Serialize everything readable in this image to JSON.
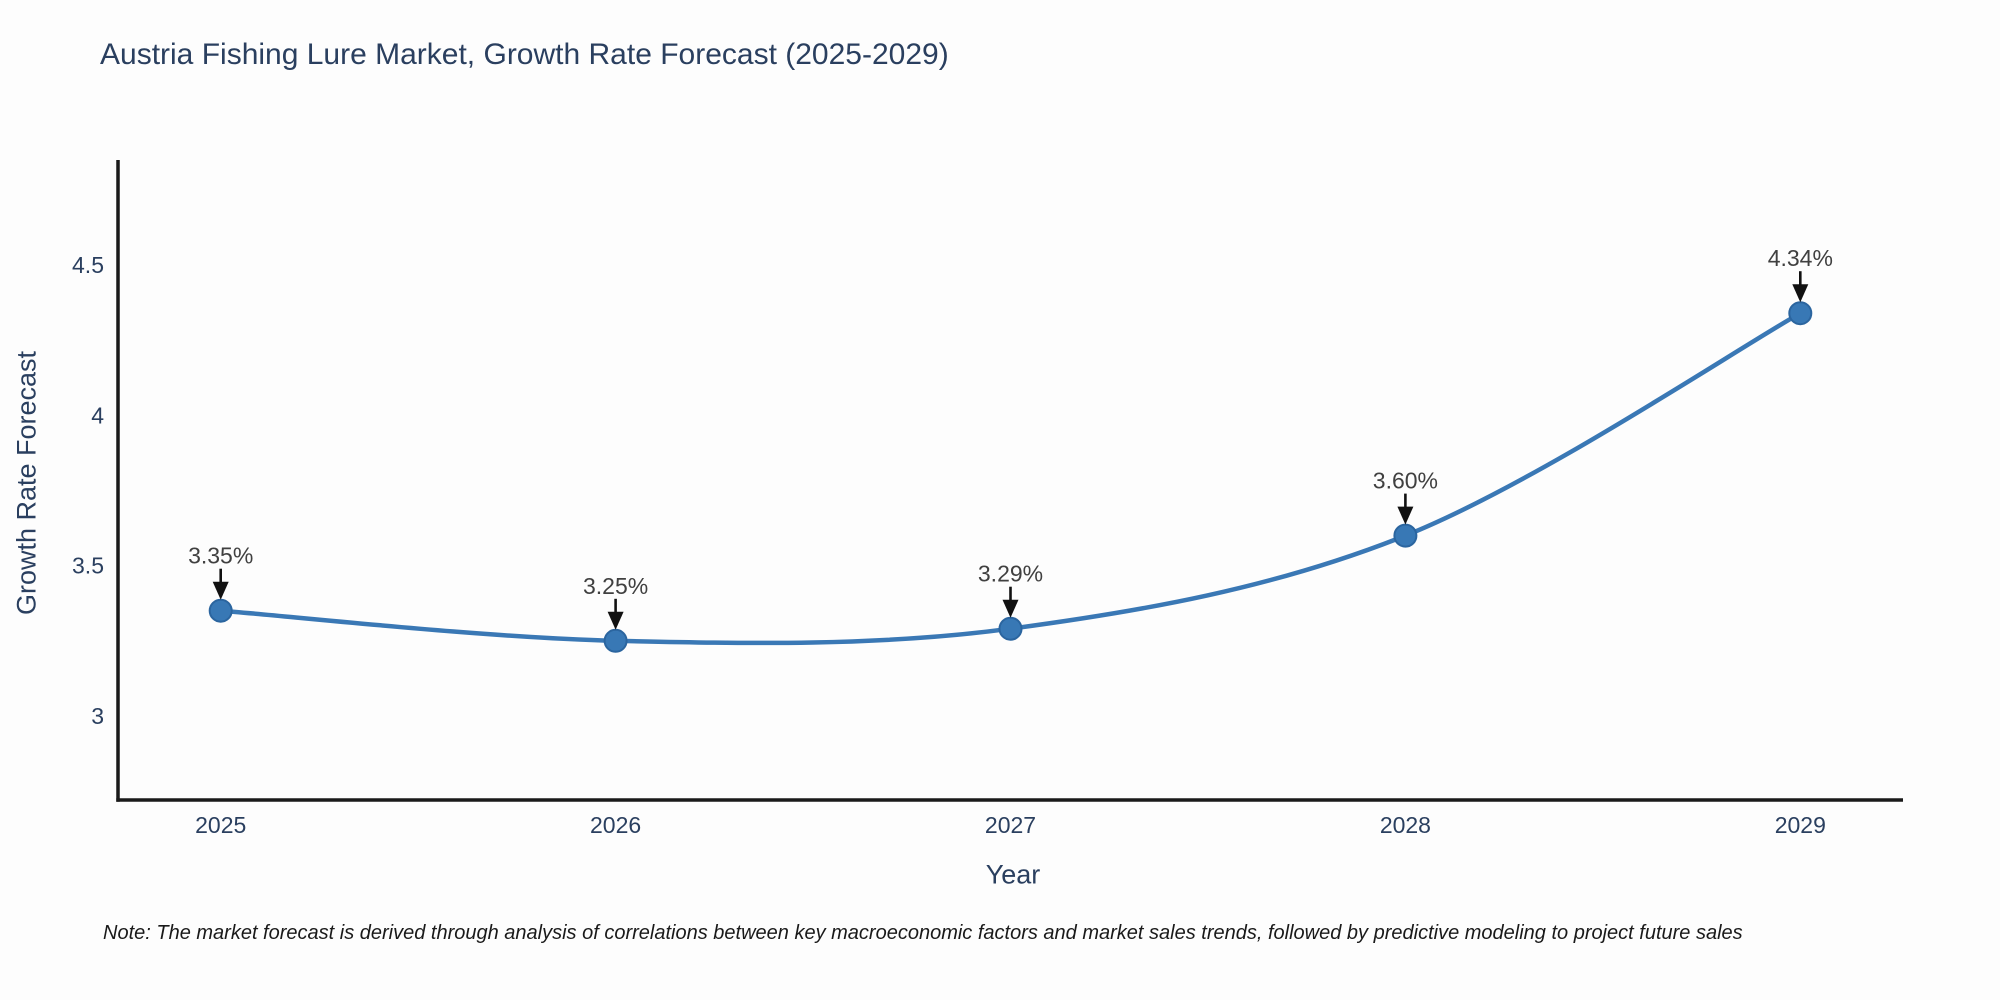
{
  "title": "Austria Fishing Lure Market, Growth Rate Forecast (2025-2029)",
  "note": "Note: The market forecast is derived through analysis of correlations between key macroeconomic factors and market sales trends, followed by predictive modeling to project future sales",
  "chart_data": {
    "type": "line",
    "x": [
      2025,
      2026,
      2027,
      2028,
      2029
    ],
    "series": [
      {
        "name": "Growth Rate Forecast",
        "values": [
          3.35,
          3.25,
          3.29,
          3.6,
          4.34
        ]
      }
    ],
    "point_labels": [
      "3.35%",
      "3.25%",
      "3.29%",
      "3.60%",
      "4.34%"
    ],
    "title": "Austria Fishing Lure Market, Growth Rate Forecast (2025-2029)",
    "xlabel": "Year",
    "ylabel": "Growth Rate Forecast",
    "xtick_labels": [
      "2025",
      "2026",
      "2027",
      "2028",
      "2029"
    ],
    "ytick_values": [
      3,
      3.5,
      4,
      4.5
    ],
    "ytick_labels": [
      "3",
      "3.5",
      "4",
      "4.5"
    ],
    "xlim": [
      2024.74,
      2029.26
    ],
    "ylim": [
      2.72,
      4.85
    ],
    "grid": false,
    "legend_position": "none",
    "line_shape": "spline",
    "annotation_style": "black-down-arrow",
    "colors": {
      "line": "#3a78b5",
      "marker_fill": "#3878b5",
      "marker_edge": "#2b659f",
      "axis": "#1a1a1a",
      "heading_text": "#2a3f5f",
      "annotation_text": "#404040",
      "arrow": "#111111"
    }
  }
}
